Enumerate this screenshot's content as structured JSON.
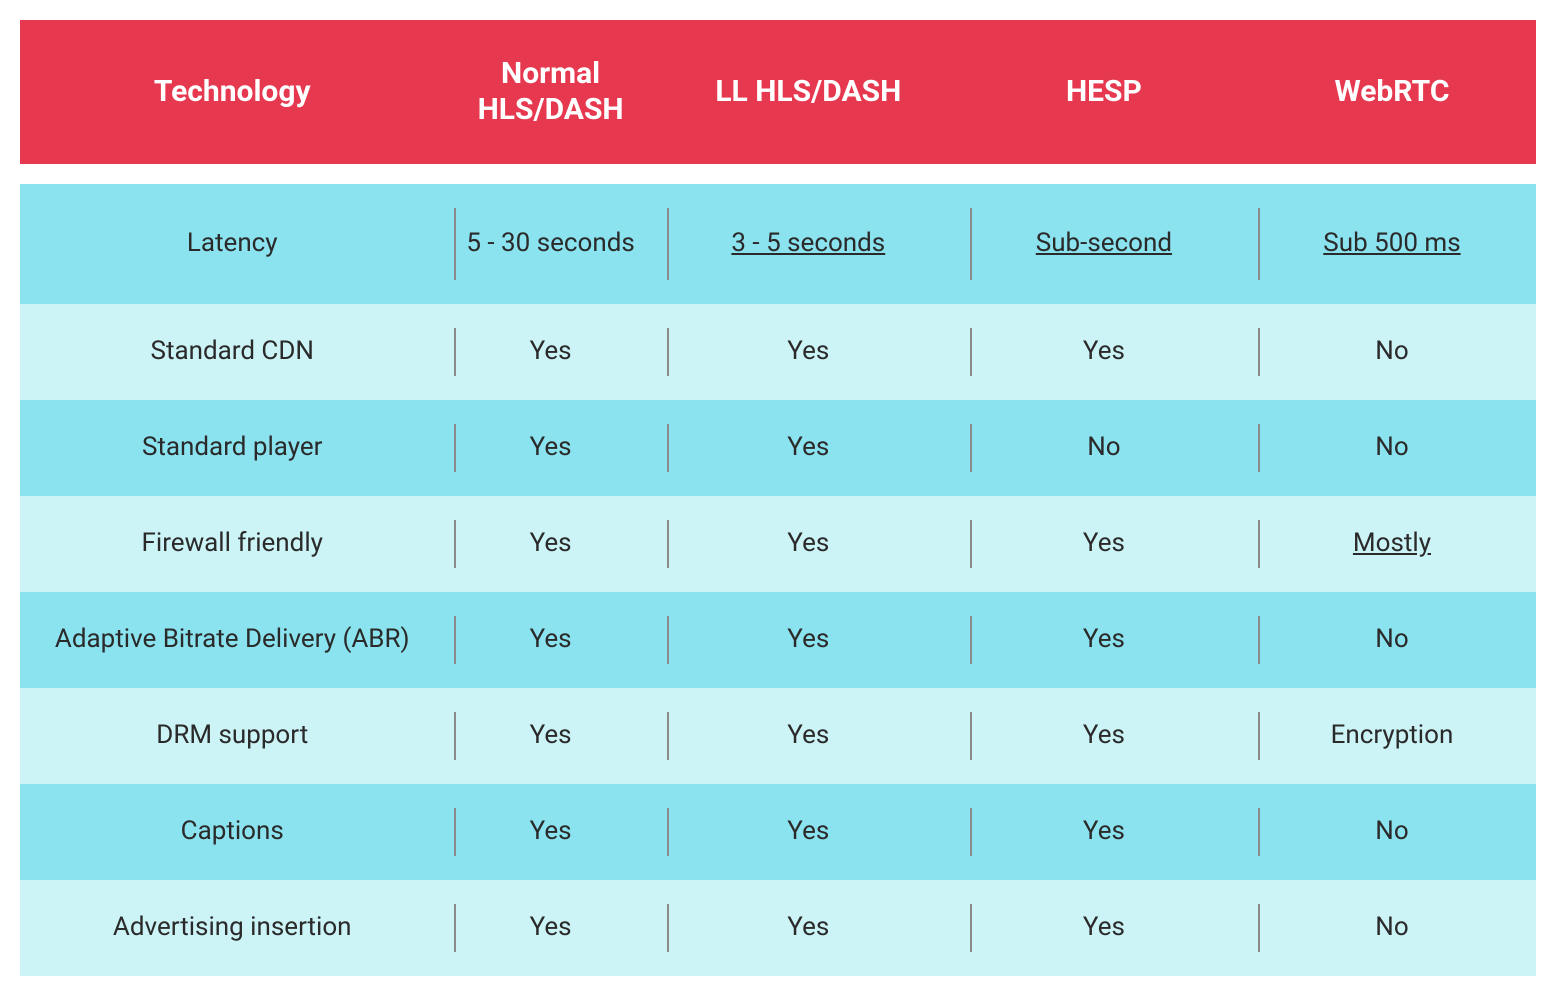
{
  "table": {
    "type": "table",
    "header_bg": "#e63950",
    "header_text_color": "#ffffff",
    "header_fontsize": 30,
    "header_fontweight": 700,
    "body_fontsize": 26,
    "body_text_color": "#2a2a2a",
    "row_color_a": "#8be3ef",
    "row_color_b": "#ccf3f6",
    "separator_color": "#8a8a8a",
    "background_color": "#ffffff",
    "first_body_row_height": 120,
    "body_row_height": 96,
    "col_widths_pct": [
      28,
      14,
      20,
      19,
      19
    ],
    "columns": [
      "Technology",
      "Normal HLS/DASH",
      "LL HLS/DASH",
      "HESP",
      "WebRTC"
    ],
    "rows": [
      {
        "label": "Latency",
        "cells": [
          {
            "text": "5 - 30 seconds",
            "underline": false
          },
          {
            "text": "3 - 5 seconds",
            "underline": true
          },
          {
            "text": "Sub-second",
            "underline": true
          },
          {
            "text": "Sub 500 ms",
            "underline": true
          }
        ]
      },
      {
        "label": "Standard CDN",
        "cells": [
          {
            "text": "Yes",
            "underline": false
          },
          {
            "text": "Yes",
            "underline": false
          },
          {
            "text": "Yes",
            "underline": false
          },
          {
            "text": "No",
            "underline": false
          }
        ]
      },
      {
        "label": "Standard player",
        "cells": [
          {
            "text": "Yes",
            "underline": false
          },
          {
            "text": "Yes",
            "underline": false
          },
          {
            "text": "No",
            "underline": false
          },
          {
            "text": "No",
            "underline": false
          }
        ]
      },
      {
        "label": "Firewall friendly",
        "cells": [
          {
            "text": "Yes",
            "underline": false
          },
          {
            "text": "Yes",
            "underline": false
          },
          {
            "text": "Yes",
            "underline": false
          },
          {
            "text": "Mostly",
            "underline": true
          }
        ]
      },
      {
        "label": "Adaptive Bitrate Delivery (ABR)",
        "cells": [
          {
            "text": "Yes",
            "underline": false
          },
          {
            "text": "Yes",
            "underline": false
          },
          {
            "text": "Yes",
            "underline": false
          },
          {
            "text": "No",
            "underline": false
          }
        ]
      },
      {
        "label": "DRM support",
        "cells": [
          {
            "text": "Yes",
            "underline": false
          },
          {
            "text": "Yes",
            "underline": false
          },
          {
            "text": "Yes",
            "underline": false
          },
          {
            "text": "Encryption",
            "underline": false
          }
        ]
      },
      {
        "label": "Captions",
        "cells": [
          {
            "text": "Yes",
            "underline": false
          },
          {
            "text": "Yes",
            "underline": false
          },
          {
            "text": "Yes",
            "underline": false
          },
          {
            "text": "No",
            "underline": false
          }
        ]
      },
      {
        "label": "Advertising insertion",
        "cells": [
          {
            "text": "Yes",
            "underline": false
          },
          {
            "text": "Yes",
            "underline": false
          },
          {
            "text": "Yes",
            "underline": false
          },
          {
            "text": "No",
            "underline": false
          }
        ]
      }
    ]
  }
}
